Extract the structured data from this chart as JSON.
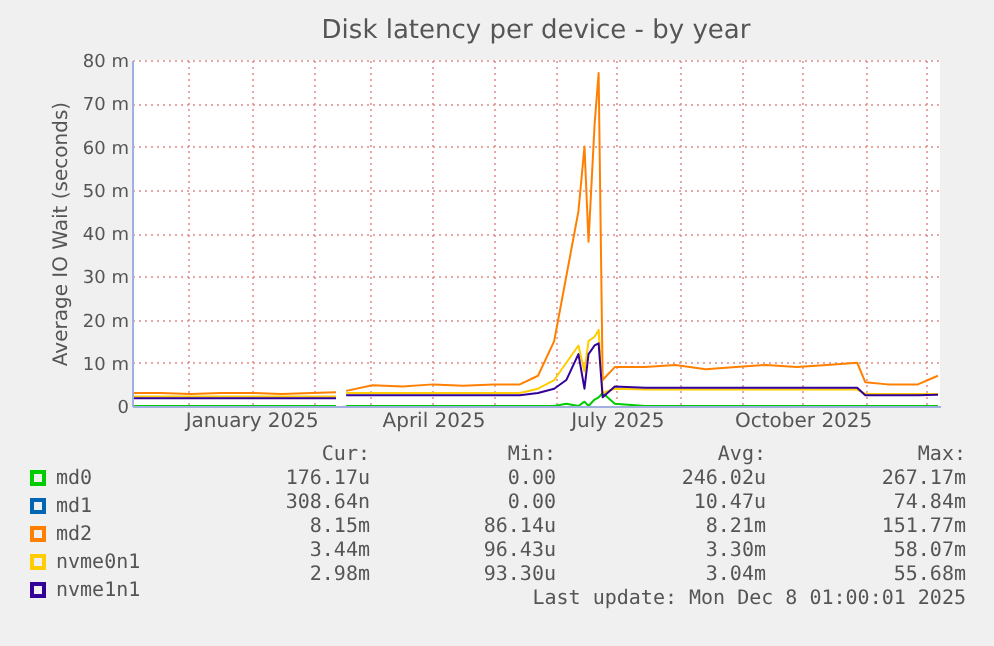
{
  "chart_data": {
    "type": "line",
    "title": "Disk latency per device - by year",
    "ylabel": "Average IO Wait (seconds)",
    "x": [
      "2024-11-04",
      "2024-11-17",
      "2024-12-02",
      "2024-12-17",
      "2025-01-01",
      "2025-01-16",
      "2025-01-31",
      "2025-02-12",
      "2025-02-13",
      "2025-02-17",
      "2025-03-02",
      "2025-03-17",
      "2025-04-01",
      "2025-04-16",
      "2025-05-01",
      "2025-05-14",
      "2025-05-23",
      "2025-05-31",
      "2025-06-06",
      "2025-06-12",
      "2025-06-15",
      "2025-06-17",
      "2025-06-20",
      "2025-06-22",
      "2025-06-24",
      "2025-06-30",
      "2025-07-15",
      "2025-07-30",
      "2025-08-14",
      "2025-08-29",
      "2025-09-13",
      "2025-09-28",
      "2025-10-13",
      "2025-10-28",
      "2025-11-01",
      "2025-11-12",
      "2025-11-27",
      "2025-12-07"
    ],
    "series": [
      {
        "name": "md0",
        "color": "#00cc00",
        "values": [
          0,
          0,
          0,
          0,
          0,
          0,
          0,
          0,
          null,
          0,
          0,
          0,
          0,
          0,
          0,
          0,
          0,
          0,
          0.5,
          0,
          1,
          0,
          1.5,
          2,
          3,
          0.5,
          0,
          0,
          0,
          0,
          0,
          0,
          0,
          0,
          0,
          0,
          0,
          0
        ]
      },
      {
        "name": "md1",
        "color": "#0066b3",
        "values": [
          null,
          null,
          null,
          null,
          null,
          null,
          null,
          null,
          null,
          null,
          null,
          null,
          null,
          null,
          null,
          null,
          null,
          null,
          null,
          null,
          null,
          null,
          null,
          null,
          null,
          null,
          null,
          null,
          null,
          null,
          null,
          null,
          null,
          null,
          null,
          null,
          null,
          null
        ]
      },
      {
        "name": "md2",
        "color": "#ff8000",
        "values": [
          3,
          3,
          2.8,
          3,
          3,
          2.8,
          3,
          3.2,
          null,
          3.5,
          4.8,
          4.5,
          5,
          4.7,
          5,
          5,
          7,
          15,
          30,
          45,
          60,
          38,
          65,
          77,
          6,
          9,
          9,
          9.5,
          8.5,
          9,
          9.5,
          9,
          9.5,
          10,
          5.5,
          5,
          5,
          7
        ]
      },
      {
        "name": "nvme0n1",
        "color": "#ffcc00",
        "values": [
          2.2,
          2.2,
          2.2,
          2.2,
          2.2,
          2.2,
          2.2,
          2.2,
          null,
          3,
          3,
          3,
          3,
          3,
          3,
          3,
          4,
          6,
          10,
          14,
          8,
          15,
          16,
          17.6,
          3,
          4,
          3.8,
          3.8,
          3.8,
          3.8,
          3.8,
          3.8,
          3.8,
          3.8,
          2.8,
          2.8,
          2.8,
          2.8
        ]
      },
      {
        "name": "nvme1n1",
        "color": "#330099",
        "values": [
          1.8,
          1.8,
          1.8,
          1.8,
          1.8,
          1.8,
          1.8,
          1.8,
          null,
          2.5,
          2.5,
          2.5,
          2.5,
          2.5,
          2.5,
          2.5,
          3,
          4,
          6,
          12,
          4,
          12,
          14,
          14.5,
          2,
          4.5,
          4.2,
          4.2,
          4.2,
          4.2,
          4.2,
          4.2,
          4.2,
          4.2,
          2.5,
          2.5,
          2.5,
          2.6
        ]
      }
    ],
    "xlim": [
      "2024-11-03",
      "2025-12-08"
    ],
    "xticks": [
      {
        "value": "2024-12-01",
        "label": null
      },
      {
        "value": "2025-01-01",
        "label": "January 2025"
      },
      {
        "value": "2025-02-01",
        "label": null
      },
      {
        "value": "2025-03-01",
        "label": null
      },
      {
        "value": "2025-04-01",
        "label": "April 2025"
      },
      {
        "value": "2025-05-01",
        "label": null
      },
      {
        "value": "2025-06-01",
        "label": null
      },
      {
        "value": "2025-07-01",
        "label": "July 2025"
      },
      {
        "value": "2025-08-01",
        "label": null
      },
      {
        "value": "2025-09-01",
        "label": null
      },
      {
        "value": "2025-10-01",
        "label": "October 2025"
      },
      {
        "value": "2025-11-01",
        "label": null
      },
      {
        "value": "2025-12-01",
        "label": null
      }
    ],
    "ylim": [
      0,
      80
    ],
    "yticks": [
      0,
      {
        "value": 10,
        "label": "10 m"
      },
      {
        "value": 20,
        "label": "20 m"
      },
      {
        "value": 30,
        "label": "30 m"
      },
      {
        "value": 40,
        "label": "40 m"
      },
      {
        "value": 50,
        "label": "50 m"
      },
      {
        "value": 60,
        "label": "60 m"
      },
      {
        "value": 70,
        "label": "70 m"
      },
      {
        "value": 80,
        "label": "80 m"
      }
    ],
    "grid": true,
    "legend": "bottom left",
    "annotations": [
      "Cur:",
      "Min:",
      "Avg:",
      "Max:",
      "176.17u",
      "0.00",
      "246.02u",
      "267.17m",
      "308.64n",
      "0.00",
      "10.47u",
      "74.84m",
      "8.15m",
      "86.14u",
      "8.21m",
      "151.77m",
      "3.44m",
      "96.43u",
      "3.30m",
      "58.07m",
      "2.98m",
      "93.30u",
      "3.04m",
      "55.68m",
      "Last update: Mon Dec  8 01:00:01 2025"
    ]
  }
}
